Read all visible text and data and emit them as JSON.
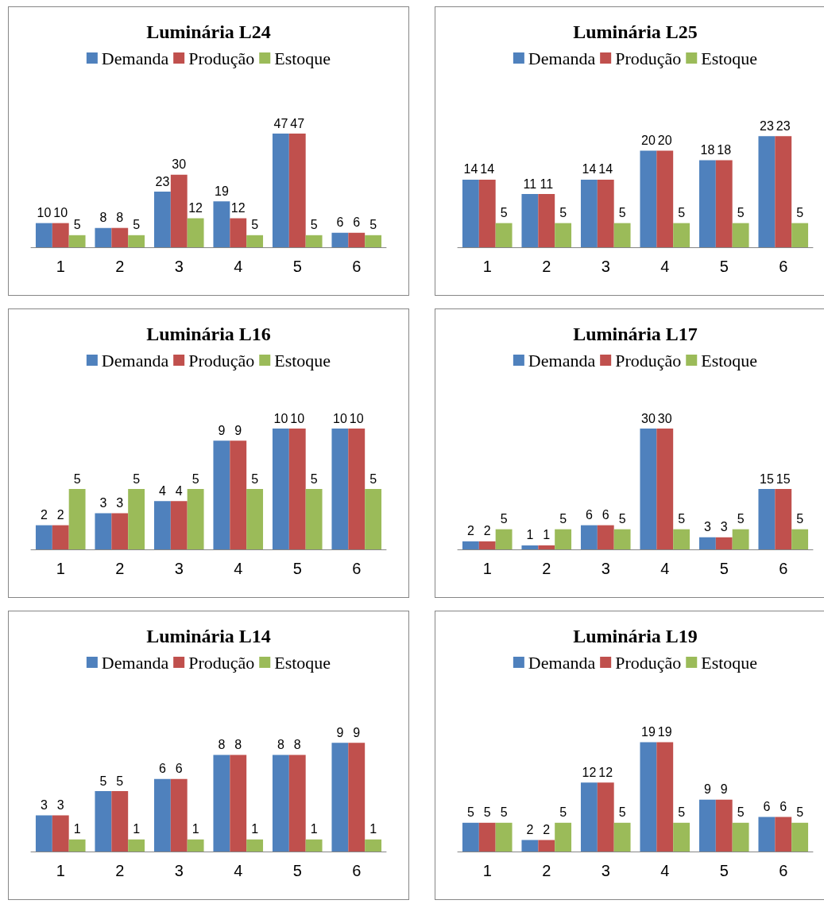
{
  "chart_data": [
    {
      "type": "bar",
      "title": "Luminária L24",
      "categories": [
        "1",
        "2",
        "3",
        "4",
        "5",
        "6"
      ],
      "series": [
        {
          "name": "Demanda",
          "color": "#4f81bd",
          "values": [
            10,
            8,
            23,
            19,
            47,
            6
          ]
        },
        {
          "name": "Produção",
          "color": "#c0504d",
          "values": [
            10,
            8,
            30,
            12,
            47,
            6
          ]
        },
        {
          "name": "Estoque",
          "color": "#9bbb59",
          "values": [
            5,
            5,
            12,
            5,
            5,
            5
          ]
        }
      ],
      "data_labels": true,
      "legend": "top",
      "tick_labels": "x"
    },
    {
      "type": "bar",
      "title": "Luminária L25",
      "categories": [
        "1",
        "2",
        "3",
        "4",
        "5",
        "6"
      ],
      "series": [
        {
          "name": "Demanda",
          "color": "#4f81bd",
          "values": [
            14,
            11,
            14,
            20,
            18,
            23
          ]
        },
        {
          "name": "Produção",
          "color": "#c0504d",
          "values": [
            14,
            11,
            14,
            20,
            18,
            23
          ]
        },
        {
          "name": "Estoque",
          "color": "#9bbb59",
          "values": [
            5,
            5,
            5,
            5,
            5,
            5
          ]
        }
      ],
      "data_labels": true,
      "legend": "top",
      "tick_labels": "x"
    },
    {
      "type": "bar",
      "title": "Luminária L16",
      "categories": [
        "1",
        "2",
        "3",
        "4",
        "5",
        "6"
      ],
      "series": [
        {
          "name": "Demanda",
          "color": "#4f81bd",
          "values": [
            2,
            3,
            4,
            9,
            10,
            10
          ]
        },
        {
          "name": "Produção",
          "color": "#c0504d",
          "values": [
            2,
            3,
            4,
            9,
            10,
            10
          ]
        },
        {
          "name": "Estoque",
          "color": "#9bbb59",
          "values": [
            5,
            5,
            5,
            5,
            5,
            5
          ]
        }
      ],
      "data_labels": true,
      "legend": "top",
      "tick_labels": "x"
    },
    {
      "type": "bar",
      "title": "Luminária L17",
      "categories": [
        "1",
        "2",
        "3",
        "4",
        "5",
        "6"
      ],
      "series": [
        {
          "name": "Demanda",
          "color": "#4f81bd",
          "values": [
            2,
            1,
            6,
            30,
            3,
            15
          ]
        },
        {
          "name": "Produção",
          "color": "#c0504d",
          "values": [
            2,
            1,
            6,
            30,
            3,
            15
          ]
        },
        {
          "name": "Estoque",
          "color": "#9bbb59",
          "values": [
            5,
            5,
            5,
            5,
            5,
            5
          ]
        }
      ],
      "data_labels": true,
      "legend": "top",
      "tick_labels": "x"
    },
    {
      "type": "bar",
      "title": "Luminária L14",
      "categories": [
        "1",
        "2",
        "3",
        "4",
        "5",
        "6"
      ],
      "series": [
        {
          "name": "Demanda",
          "color": "#4f81bd",
          "values": [
            3,
            5,
            6,
            8,
            8,
            9
          ]
        },
        {
          "name": "Produção",
          "color": "#c0504d",
          "values": [
            3,
            5,
            6,
            8,
            8,
            9
          ]
        },
        {
          "name": "Estoque",
          "color": "#9bbb59",
          "values": [
            1,
            1,
            1,
            1,
            1,
            1
          ]
        }
      ],
      "data_labels": true,
      "legend": "top",
      "tick_labels": "x"
    },
    {
      "type": "bar",
      "title": "Luminária L19",
      "categories": [
        "1",
        "2",
        "3",
        "4",
        "5",
        "6"
      ],
      "series": [
        {
          "name": "Demanda",
          "color": "#4f81bd",
          "values": [
            5,
            2,
            12,
            19,
            9,
            6
          ]
        },
        {
          "name": "Produção",
          "color": "#c0504d",
          "values": [
            5,
            2,
            12,
            19,
            9,
            6
          ]
        },
        {
          "name": "Estoque",
          "color": "#9bbb59",
          "values": [
            5,
            5,
            5,
            5,
            5,
            5
          ]
        }
      ],
      "data_labels": true,
      "legend": "top",
      "tick_labels": "x"
    }
  ]
}
